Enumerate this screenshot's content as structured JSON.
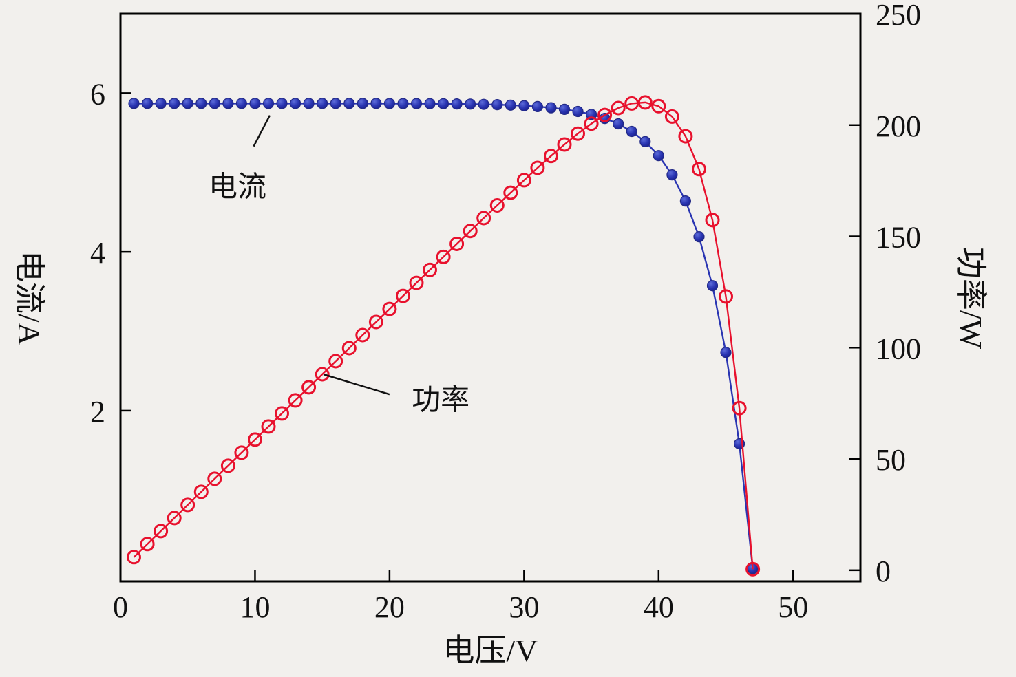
{
  "colors": {
    "background": "#f2f0ed",
    "axis": "#000000",
    "text": "#111111",
    "current_series": "#2a35b2",
    "power_series": "#e8112d"
  },
  "chart_data": {
    "type": "line",
    "title": "",
    "xlabel": "电压/V",
    "ylabel_left": "电流/A",
    "ylabel_right": "功率/W",
    "xlim": [
      0,
      55
    ],
    "ylim_left": [
      -0.15,
      7.0
    ],
    "ylim_right": [
      -5,
      250
    ],
    "x_ticks": [
      0,
      10,
      20,
      30,
      40,
      50
    ],
    "y_ticks_left": [
      2,
      4,
      6
    ],
    "y_ticks_right": [
      0,
      50,
      100,
      150,
      200,
      250
    ],
    "grid": false,
    "legend": "annotations-on-plot",
    "x": [
      1,
      2,
      3,
      4,
      5,
      6,
      7,
      8,
      9,
      10,
      11,
      12,
      13,
      14,
      15,
      16,
      17,
      18,
      19,
      20,
      21,
      22,
      23,
      24,
      25,
      26,
      27,
      28,
      29,
      30,
      31,
      32,
      33,
      34,
      35,
      36,
      37,
      38,
      39,
      40,
      41,
      42,
      43,
      44,
      45,
      46,
      47
    ],
    "series": [
      {
        "id": "current",
        "name": "电流",
        "axis": "left",
        "unit": "A",
        "color": "#2a35b2",
        "marker": "filled-circle",
        "values": [
          5.87,
          5.87,
          5.87,
          5.87,
          5.87,
          5.87,
          5.87,
          5.87,
          5.87,
          5.87,
          5.87,
          5.87,
          5.87,
          5.87,
          5.87,
          5.87,
          5.87,
          5.87,
          5.87,
          5.869,
          5.868,
          5.868,
          5.867,
          5.866,
          5.864,
          5.862,
          5.859,
          5.855,
          5.849,
          5.841,
          5.831,
          5.816,
          5.796,
          5.769,
          5.732,
          5.682,
          5.613,
          5.518,
          5.389,
          5.213,
          4.971,
          4.642,
          4.191,
          3.575,
          2.734,
          1.583,
          0.01
        ]
      },
      {
        "id": "power",
        "name": "功率",
        "axis": "right",
        "unit": "W",
        "color": "#e8112d",
        "marker": "open-circle",
        "values": [
          5.87,
          11.74,
          17.61,
          23.48,
          29.35,
          35.22,
          41.09,
          46.96,
          52.83,
          58.7,
          64.57,
          70.44,
          76.31,
          82.18,
          88.05,
          93.92,
          99.79,
          105.66,
          111.53,
          117.38,
          123.23,
          129.1,
          134.94,
          140.78,
          146.61,
          152.41,
          158.19,
          163.93,
          169.62,
          175.23,
          180.76,
          186.12,
          191.28,
          196.15,
          200.63,
          204.54,
          207.67,
          209.69,
          210.17,
          208.5,
          203.82,
          194.95,
          180.22,
          157.32,
          123.01,
          72.82,
          0.47
        ]
      }
    ],
    "annotations": [
      {
        "text": "电流",
        "axis": "left",
        "text_pos": [
          8.7,
          4.85
        ],
        "leader": [
          [
            9.9,
            5.33
          ],
          [
            11.1,
            5.72
          ]
        ]
      },
      {
        "text": "功率",
        "axis": "right",
        "text_pos": [
          23.8,
          77.5
        ],
        "leader": [
          [
            20.0,
            79.0
          ],
          [
            15.1,
            88.0
          ]
        ]
      }
    ]
  }
}
